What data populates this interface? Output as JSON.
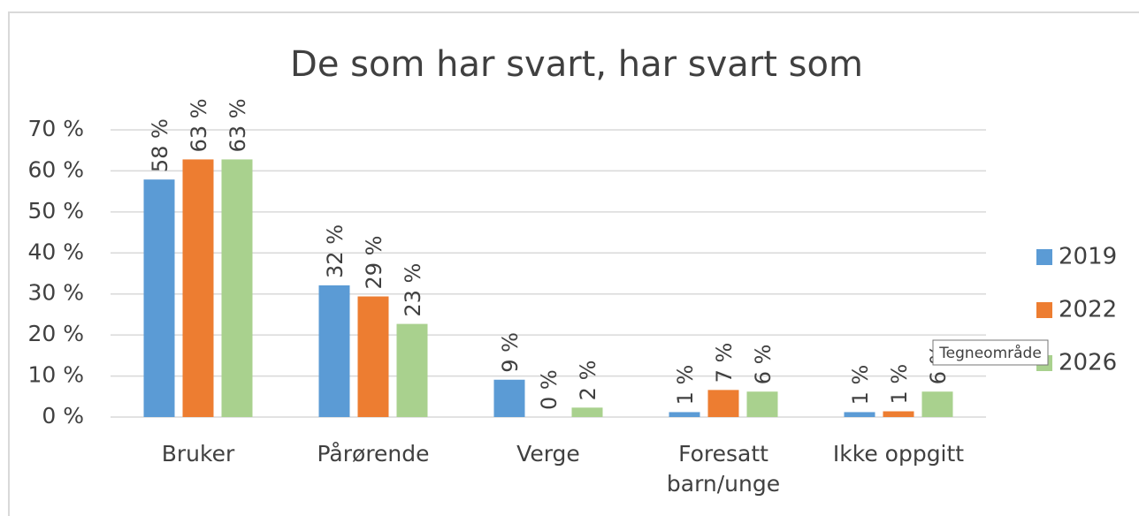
{
  "chart_data": {
    "type": "bar",
    "title": "De som har svart, har svart som",
    "categories": [
      "Bruker",
      "Pårørende",
      "Verge",
      "Foresatt barn/unge",
      "Ikke oppgitt"
    ],
    "series": [
      {
        "name": "2019",
        "color": "#5b9bd5",
        "values": [
          57.9,
          32.1,
          9.1,
          1.2,
          1.2
        ],
        "value_labels": [
          "58 %",
          "32 %",
          "9 %",
          "1 %",
          "1 %"
        ]
      },
      {
        "name": "2022",
        "color": "#ed7d31",
        "values": [
          62.8,
          29.4,
          0,
          6.6,
          1.4
        ],
        "value_labels": [
          "63 %",
          "29 %",
          "0 %",
          "7 %",
          "1 %"
        ]
      },
      {
        "name": "2026",
        "color": "#a9d18e",
        "values": [
          62.8,
          22.7,
          2.3,
          6.2,
          6.2
        ],
        "value_labels": [
          "63 %",
          "23 %",
          "2 %",
          "6 %",
          "6 %"
        ]
      }
    ],
    "ylim": [
      0,
      70
    ],
    "yticks": [
      {
        "value": 0,
        "label": "0 %"
      },
      {
        "value": 10,
        "label": "10 %"
      },
      {
        "value": 20,
        "label": "20 %"
      },
      {
        "value": 30,
        "label": "30 %"
      },
      {
        "value": 40,
        "label": "40 %"
      },
      {
        "value": 50,
        "label": "50 %"
      },
      {
        "value": 60,
        "label": "60 %"
      },
      {
        "value": 70,
        "label": "70 %"
      }
    ],
    "grid": true,
    "legend": "right",
    "tooltip": "Tegneområde"
  }
}
